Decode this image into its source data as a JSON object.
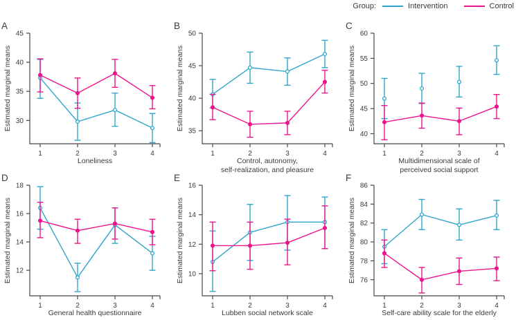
{
  "chart_data": {
    "type": "line",
    "ylabel": "Estimated marginal means",
    "grid": false,
    "legend": {
      "label": "Group:",
      "position": "top-right",
      "entries": [
        {
          "name": "Intervention",
          "color": "#2ea6cb"
        },
        {
          "name": "Control",
          "color": "#ec148c"
        }
      ]
    },
    "x_ticks": [
      "1",
      "2",
      "3",
      "4"
    ],
    "axis_color": "#454545",
    "text_color": "#3a3a3a",
    "panels": [
      {
        "id": "A",
        "xlabel_lines": [
          "Loneliness"
        ],
        "ylim": [
          26,
          45
        ],
        "yticks": [
          30,
          35,
          40,
          45
        ],
        "series": [
          {
            "name": "Intervention",
            "connected": true,
            "y": [
              37.3,
              29.8,
              31.8,
              28.7
            ],
            "lo": [
              33.8,
              26.6,
              29.0,
              26.2
            ],
            "hi": [
              40.5,
              33.0,
              34.7,
              31.2
            ]
          },
          {
            "name": "Control",
            "connected": true,
            "y": [
              37.8,
              34.7,
              38.1,
              33.9
            ],
            "lo": [
              34.9,
              32.1,
              35.7,
              32.0
            ],
            "hi": [
              40.6,
              37.3,
              40.5,
              36.0
            ]
          }
        ]
      },
      {
        "id": "B",
        "xlabel_lines": [
          "Control, autonomy,",
          "self-realization, and pleasure"
        ],
        "ylim": [
          33,
          50
        ],
        "yticks": [
          35,
          40,
          45,
          50
        ],
        "series": [
          {
            "name": "Intervention",
            "connected": true,
            "y": [
              40.6,
              44.7,
              44.1,
              46.8
            ],
            "lo": [
              38.5,
              42.3,
              42.0,
              44.7
            ],
            "hi": [
              42.9,
              47.1,
              46.2,
              48.9
            ]
          },
          {
            "name": "Control",
            "connected": true,
            "y": [
              38.6,
              36.0,
              36.2,
              42.5
            ],
            "lo": [
              36.7,
              34.0,
              34.4,
              40.8
            ],
            "hi": [
              40.6,
              38.0,
              38.0,
              44.3
            ]
          }
        ]
      },
      {
        "id": "C",
        "xlabel_lines": [
          "Multidimensional scale of",
          "perceived social support"
        ],
        "ylim": [
          38,
          60
        ],
        "yticks": [
          40,
          45,
          50,
          55,
          60
        ],
        "series": [
          {
            "name": "Intervention",
            "connected": false,
            "y": [
              47.0,
              49.0,
              50.3,
              54.6
            ],
            "lo": [
              43.0,
              46.0,
              47.3,
              51.8
            ],
            "hi": [
              51.0,
              52.0,
              53.4,
              57.5
            ]
          },
          {
            "name": "Control",
            "connected": true,
            "y": [
              42.3,
              43.6,
              42.5,
              45.4
            ],
            "lo": [
              38.8,
              41.1,
              39.8,
              43.0
            ],
            "hi": [
              45.6,
              46.1,
              45.1,
              47.8
            ]
          }
        ]
      },
      {
        "id": "D",
        "xlabel_lines": [
          "General health questionnaire"
        ],
        "ylim": [
          10.2,
          18
        ],
        "yticks": [
          12,
          14,
          16,
          18
        ],
        "series": [
          {
            "name": "Intervention",
            "connected": true,
            "y": [
              16.4,
              11.5,
              15.2,
              13.2
            ],
            "lo": [
              14.9,
              10.5,
              13.9,
              12.0
            ],
            "hi": [
              17.9,
              12.5,
              16.4,
              14.4
            ]
          },
          {
            "name": "Control",
            "connected": true,
            "y": [
              15.5,
              14.8,
              15.3,
              14.7
            ],
            "lo": [
              14.3,
              13.9,
              14.2,
              13.8
            ],
            "hi": [
              16.8,
              15.6,
              16.4,
              15.6
            ]
          }
        ]
      },
      {
        "id": "E",
        "xlabel_lines": [
          "Lubben social network scale"
        ],
        "ylim": [
          8.5,
          16
        ],
        "yticks": [
          10,
          12,
          14,
          16
        ],
        "series": [
          {
            "name": "Intervention",
            "connected": true,
            "y": [
              10.8,
              12.8,
              13.5,
              13.5
            ],
            "lo": [
              8.8,
              10.9,
              11.6,
              11.7
            ],
            "hi": [
              12.9,
              14.7,
              15.3,
              15.2
            ]
          },
          {
            "name": "Control",
            "connected": true,
            "y": [
              11.9,
              11.9,
              12.1,
              13.1
            ],
            "lo": [
              10.2,
              10.3,
              10.6,
              11.7
            ],
            "hi": [
              13.5,
              13.5,
              13.7,
              14.6
            ]
          }
        ]
      },
      {
        "id": "F",
        "xlabel_lines": [
          "Self-care ability scale for the elderly"
        ],
        "ylim": [
          74.3,
          86
        ],
        "yticks": [
          76,
          78,
          80,
          82,
          84,
          86
        ],
        "series": [
          {
            "name": "Intervention",
            "connected": true,
            "y": [
              79.5,
              82.9,
              81.8,
              82.8
            ],
            "lo": [
              77.7,
              81.3,
              80.2,
              81.3
            ],
            "hi": [
              81.3,
              84.5,
              83.5,
              84.4
            ]
          },
          {
            "name": "Control",
            "connected": true,
            "y": [
              78.8,
              76.0,
              76.9,
              77.2
            ],
            "lo": [
              77.3,
              74.6,
              75.5,
              75.9
            ],
            "hi": [
              80.2,
              77.3,
              78.3,
              78.4
            ]
          }
        ]
      }
    ]
  }
}
